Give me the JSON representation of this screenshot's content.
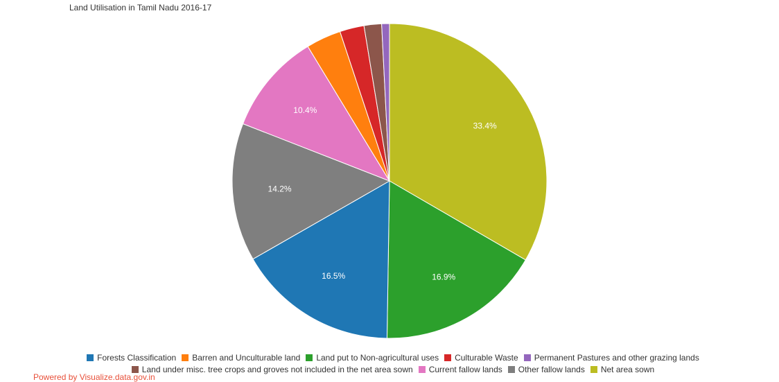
{
  "chart_data": {
    "type": "pie",
    "title": "Land Utilisation in Tamil Nadu 2016-17",
    "slices": [
      {
        "label": "Net area sown",
        "value": 33.4,
        "color": "#bcbd22",
        "show_label": true
      },
      {
        "label": "Land put to Non-agricultural uses",
        "value": 16.9,
        "color": "#2ca02c",
        "show_label": true
      },
      {
        "label": "Forests Classification",
        "value": 16.5,
        "color": "#1f77b4",
        "show_label": true
      },
      {
        "label": "Other fallow lands",
        "value": 14.2,
        "color": "#7f7f7f",
        "show_label": true
      },
      {
        "label": "Current fallow lands",
        "value": 10.4,
        "color": "#e377c2",
        "show_label": true
      },
      {
        "label": "Barren and Unculturable land",
        "value": 3.6,
        "color": "#ff7f0e",
        "show_label": false
      },
      {
        "label": "Culturable Waste",
        "value": 2.5,
        "color": "#d62728",
        "show_label": false
      },
      {
        "label": "Land under misc. tree crops and groves not included in the net area sown",
        "value": 1.8,
        "color": "#8c564b",
        "show_label": false
      },
      {
        "label": "Permanent Pastures and other grazing lands",
        "value": 0.8,
        "color": "#9467bd",
        "show_label": false
      }
    ],
    "legend": {
      "placement": "bottom",
      "rows": [
        [
          {
            "label": "Forests Classification",
            "color": "#1f77b4"
          },
          {
            "label": "Barren and Unculturable land",
            "color": "#ff7f0e"
          },
          {
            "label": "Land put to Non-agricultural uses",
            "color": "#2ca02c"
          },
          {
            "label": "Culturable Waste",
            "color": "#d62728"
          },
          {
            "label": "Permanent Pastures and other grazing lands",
            "color": "#9467bd"
          }
        ],
        [
          {
            "label": "Land under misc. tree crops and groves not included in the net area sown",
            "color": "#8c564b"
          },
          {
            "label": "Current fallow lands",
            "color": "#e377c2"
          },
          {
            "label": "Other fallow lands",
            "color": "#7f7f7f"
          },
          {
            "label": "Net area sown",
            "color": "#bcbd22"
          }
        ]
      ]
    }
  },
  "footer": {
    "credit": "Powered by Visualize.data.gov.in"
  }
}
